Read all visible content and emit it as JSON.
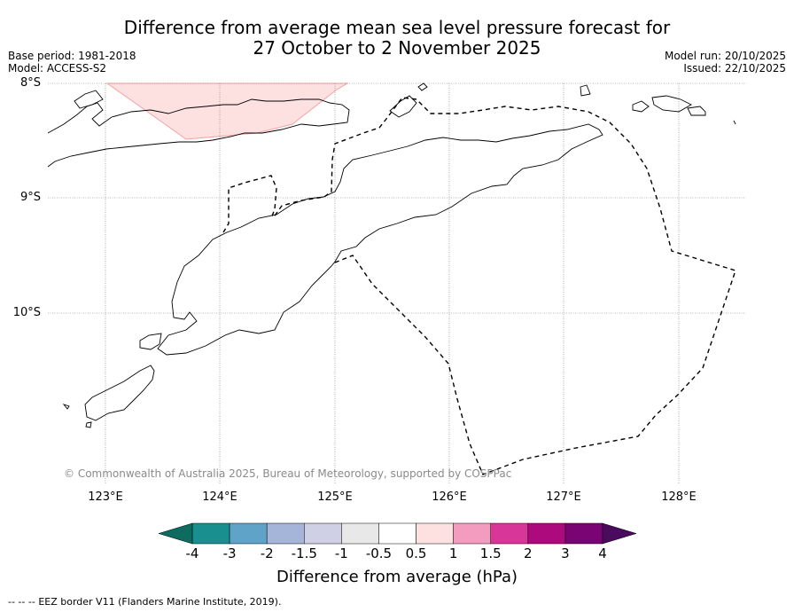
{
  "title": {
    "line1": "Difference from average mean sea level pressure forecast for",
    "line2": "27 October to 2 November 2025"
  },
  "meta": {
    "base_period": "Base period: 1981-2018",
    "model": "Model: ACCESS-S2",
    "model_run": "Model run: 20/10/2025",
    "issued": "Issued: 22/10/2025"
  },
  "map": {
    "latitude_labels": [
      "8°S",
      "9°S",
      "10°S"
    ],
    "longitude_labels": [
      "123°E",
      "124°E",
      "125°E",
      "126°E",
      "127°E",
      "128°E"
    ],
    "extent": {
      "lon": [
        122.5,
        128.6
      ],
      "lat": [
        -8.0,
        -11.5
      ]
    },
    "anomaly_region": {
      "category": "0.5 to 1",
      "color": "#fde0e0"
    },
    "copyright": "© Commonwealth of Australia 2025, Bureau of Meteorology, supported by COSPPac"
  },
  "colorbar": {
    "label": "Difference from average (hPa)",
    "tick_labels": [
      "-4",
      "-3",
      "-2",
      "-1.5",
      "-1",
      "-0.5",
      "0.5",
      "1",
      "1.5",
      "2",
      "3",
      "4"
    ],
    "colors": [
      "#1a8f8f",
      "#5fa3c9",
      "#a4b5d9",
      "#cfcfe6",
      "#e8e8e8",
      "#ffffff",
      "#fde0e0",
      "#f49cbf",
      "#d9369a",
      "#ad0a7d",
      "#7b0475"
    ],
    "under_color": "#0d6b5f",
    "over_color": "#4a0a5e"
  },
  "footer": {
    "legend_symbol": "--  --  --",
    "eez_note": "EEZ border V11 (Flanders Marine Institute, 2019)."
  }
}
